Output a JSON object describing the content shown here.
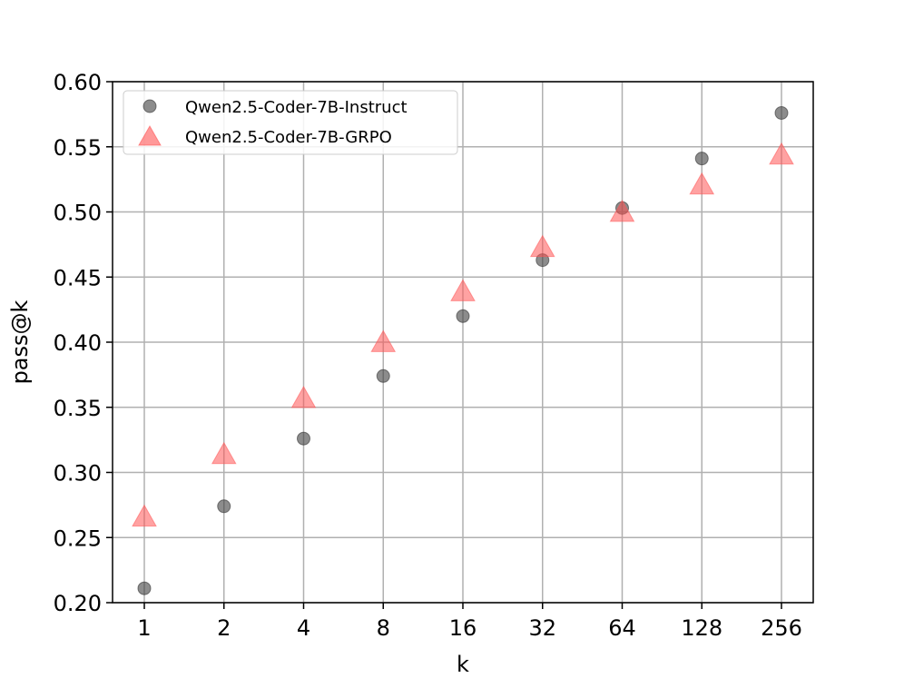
{
  "chart_data": {
    "type": "scatter",
    "xlabel": "k",
    "ylabel": "pass@k",
    "categories": [
      "1",
      "2",
      "4",
      "8",
      "16",
      "32",
      "64",
      "128",
      "256"
    ],
    "ylim": [
      0.2,
      0.6
    ],
    "yticks": [
      "0.20",
      "0.25",
      "0.30",
      "0.35",
      "0.40",
      "0.45",
      "0.50",
      "0.55",
      "0.60"
    ],
    "grid": true,
    "legend_position": "top-left",
    "series": [
      {
        "name": "Qwen2.5-Coder-7B-Instruct",
        "marker": "circle",
        "color": "#404040",
        "values": [
          0.211,
          0.274,
          0.326,
          0.374,
          0.42,
          0.463,
          0.503,
          0.541,
          0.576
        ]
      },
      {
        "name": "Qwen2.5-Coder-7B-GRPO",
        "marker": "triangle",
        "color": "#ff5555",
        "values": [
          0.266,
          0.314,
          0.357,
          0.4,
          0.439,
          0.473,
          0.5,
          0.521,
          0.544
        ]
      }
    ]
  }
}
